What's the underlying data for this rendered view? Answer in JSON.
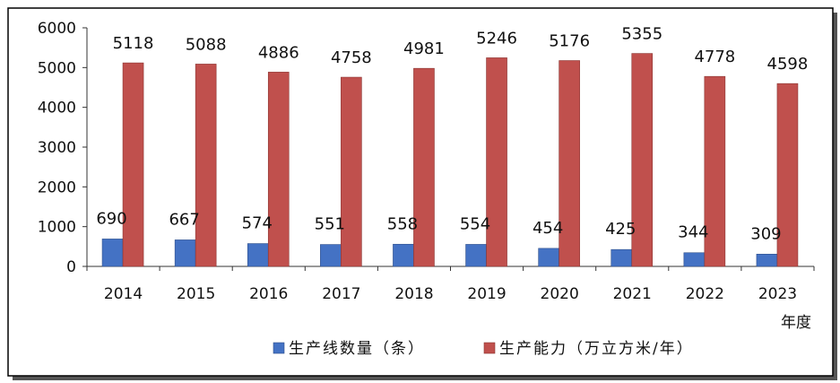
{
  "chart_data": {
    "type": "bar",
    "categories": [
      "2014",
      "2015",
      "2016",
      "2017",
      "2018",
      "2019",
      "2020",
      "2021",
      "2022",
      "2023"
    ],
    "series": [
      {
        "name": "生产线数量（条）",
        "color": "#4472c4",
        "values": [
          690,
          667,
          574,
          551,
          558,
          554,
          454,
          425,
          344,
          309
        ]
      },
      {
        "name": "生产能力（万立方米/年）",
        "color": "#c0504d",
        "values": [
          5118,
          5088,
          4886,
          4758,
          4981,
          5246,
          5176,
          5355,
          4778,
          4598
        ]
      }
    ],
    "title": "",
    "xlabel": "年度",
    "ylabel": "",
    "ylim": [
      0,
      6000
    ],
    "yticks": [
      0,
      1000,
      2000,
      3000,
      4000,
      5000,
      6000
    ],
    "grid": false,
    "legend_position": "bottom"
  }
}
